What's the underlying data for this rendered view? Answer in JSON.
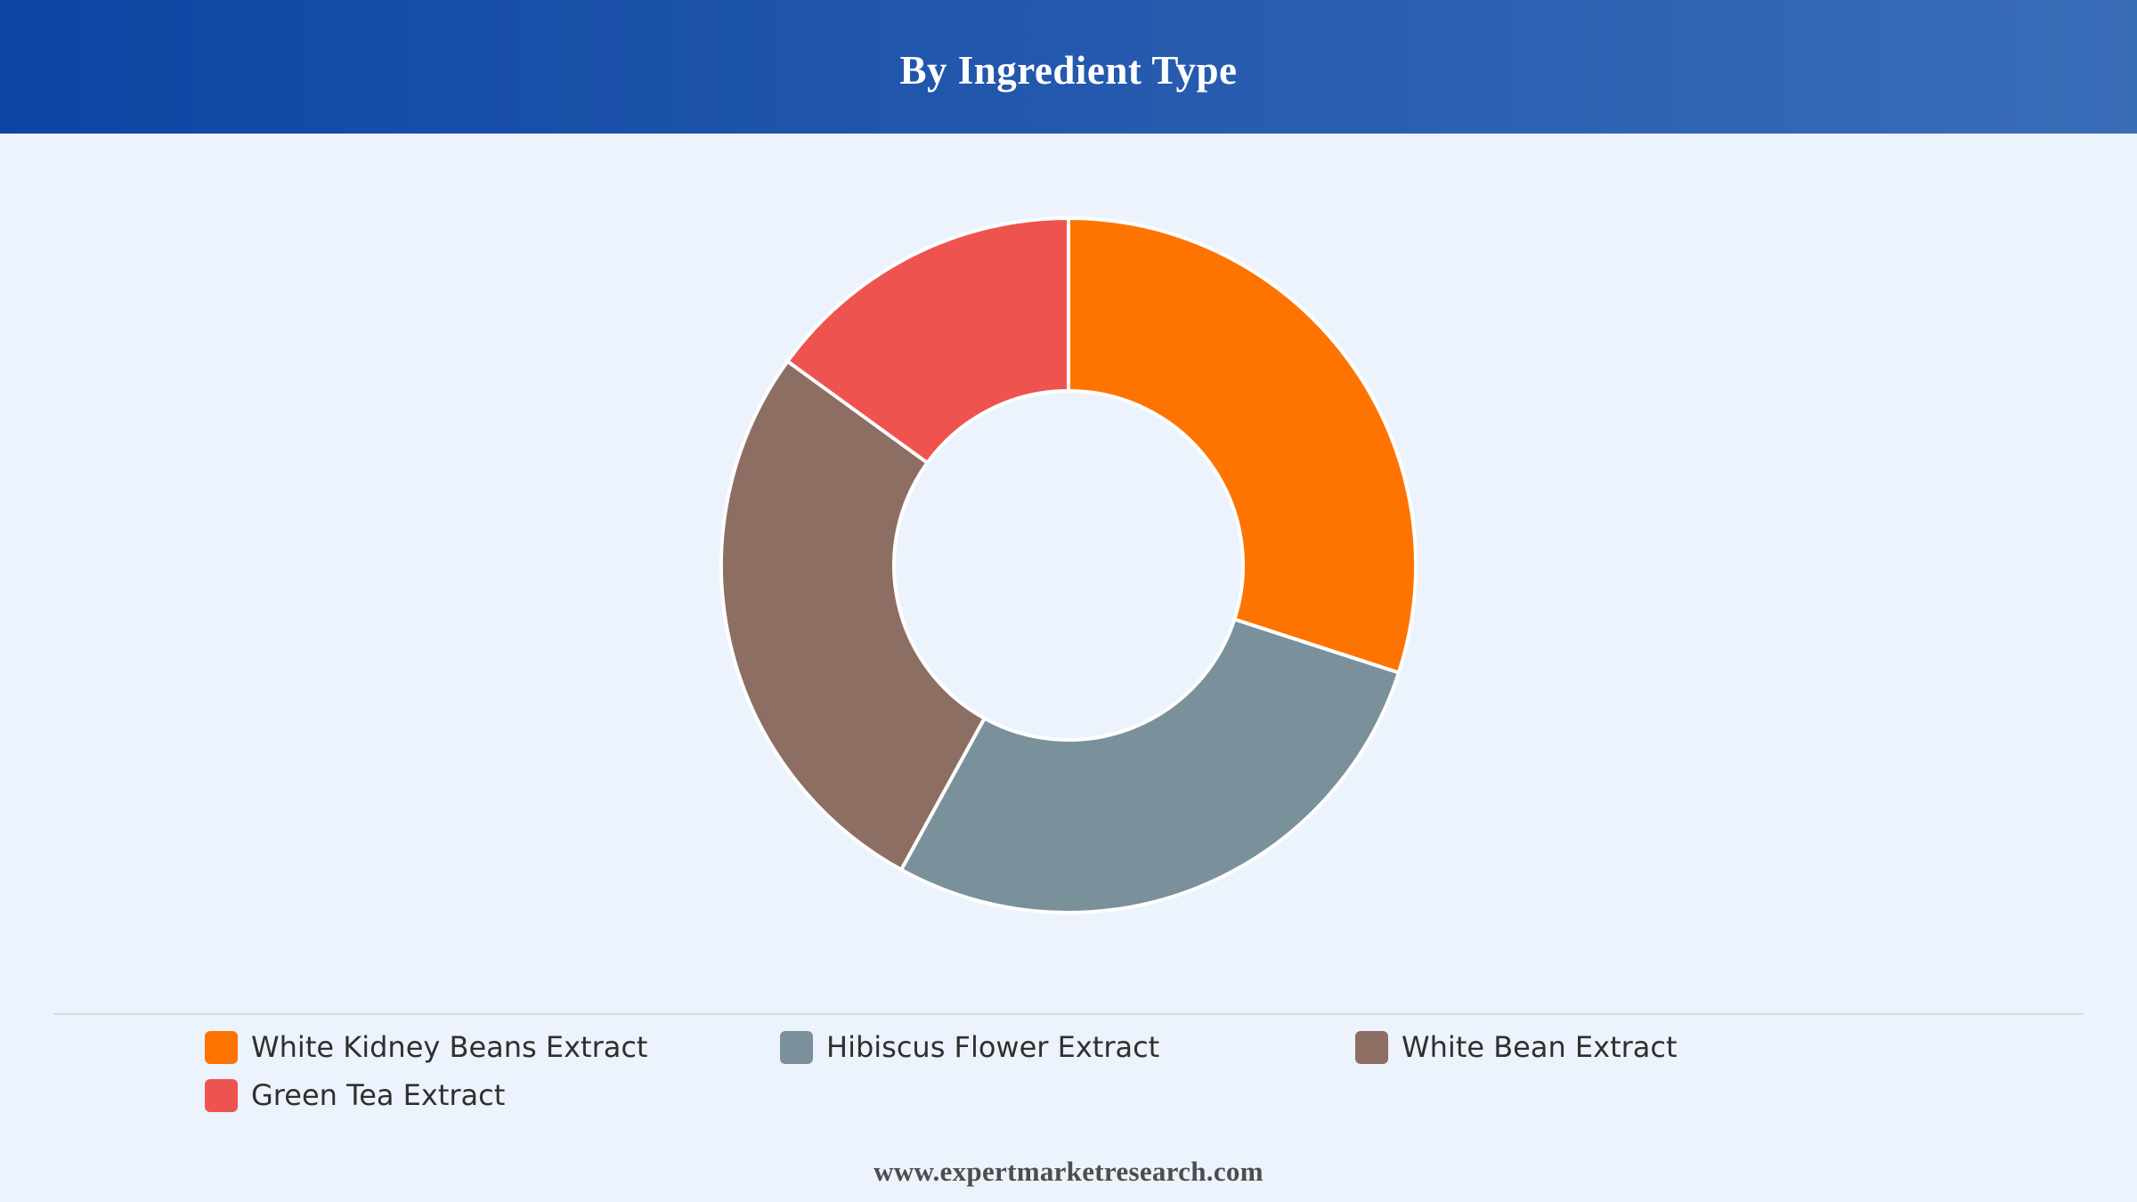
{
  "header": {
    "title": "By Ingredient Type"
  },
  "chart_data": {
    "type": "pie",
    "style": "donut",
    "title": "By Ingredient Type",
    "categories": [
      "White Kidney Beans Extract",
      "Hibiscus Flower Extract",
      "White Bean Extract",
      "Green Tea Extract"
    ],
    "values": [
      30.0,
      28.0,
      27.0,
      15.0
    ],
    "colors": [
      "#ff7300",
      "#7a919b",
      "#8d6e63",
      "#ef5350"
    ],
    "legend_position": "bottom"
  },
  "legend": {
    "items": [
      {
        "label": "White Kidney Beans Extract",
        "color": "#ff7300"
      },
      {
        "label": "Hibiscus Flower Extract",
        "color": "#7a919b"
      },
      {
        "label": "White Bean Extract",
        "color": "#8d6e63"
      },
      {
        "label": "Green Tea Extract",
        "color": "#ef5350"
      }
    ]
  },
  "footer": {
    "website": "www.expertmarketresearch.com"
  }
}
